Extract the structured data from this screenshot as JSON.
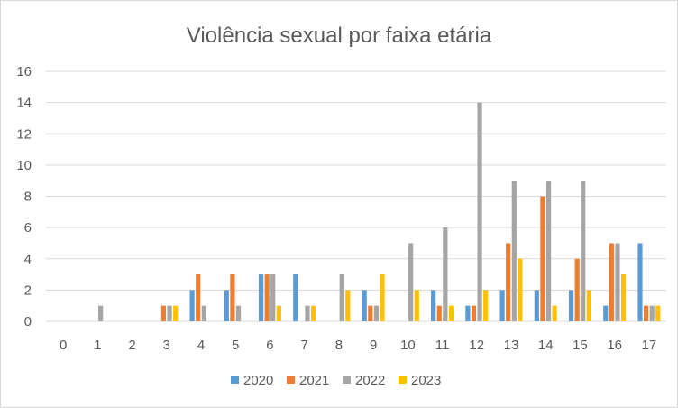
{
  "chart_data": {
    "type": "bar",
    "title": "Violência sexual por faixa etária",
    "xlabel": "",
    "ylabel": "",
    "categories": [
      "0",
      "1",
      "2",
      "3",
      "4",
      "5",
      "6",
      "7",
      "8",
      "9",
      "10",
      "11",
      "12",
      "13",
      "14",
      "15",
      "16",
      "17"
    ],
    "series": [
      {
        "name": "2020",
        "color": "#5b9bd5",
        "values": [
          0,
          0,
          0,
          0,
          2,
          2,
          3,
          3,
          0,
          2,
          0,
          2,
          1,
          2,
          2,
          2,
          1,
          5
        ]
      },
      {
        "name": "2021",
        "color": "#ed7d31",
        "values": [
          0,
          0,
          0,
          1,
          3,
          3,
          3,
          0,
          0,
          1,
          0,
          1,
          1,
          5,
          8,
          4,
          5,
          1
        ]
      },
      {
        "name": "2022",
        "color": "#a5a5a5",
        "values": [
          0,
          1,
          0,
          1,
          1,
          1,
          3,
          1,
          3,
          1,
          5,
          6,
          14,
          9,
          9,
          9,
          5,
          1
        ]
      },
      {
        "name": "2023",
        "color": "#ffc000",
        "values": [
          0,
          0,
          0,
          1,
          0,
          0,
          1,
          1,
          2,
          3,
          2,
          1,
          2,
          4,
          1,
          2,
          3,
          1
        ]
      }
    ],
    "ylim": [
      0,
      16
    ],
    "yticks": [
      0,
      2,
      4,
      6,
      8,
      10,
      12,
      14,
      16
    ],
    "grid": true,
    "legend_position": "bottom"
  }
}
